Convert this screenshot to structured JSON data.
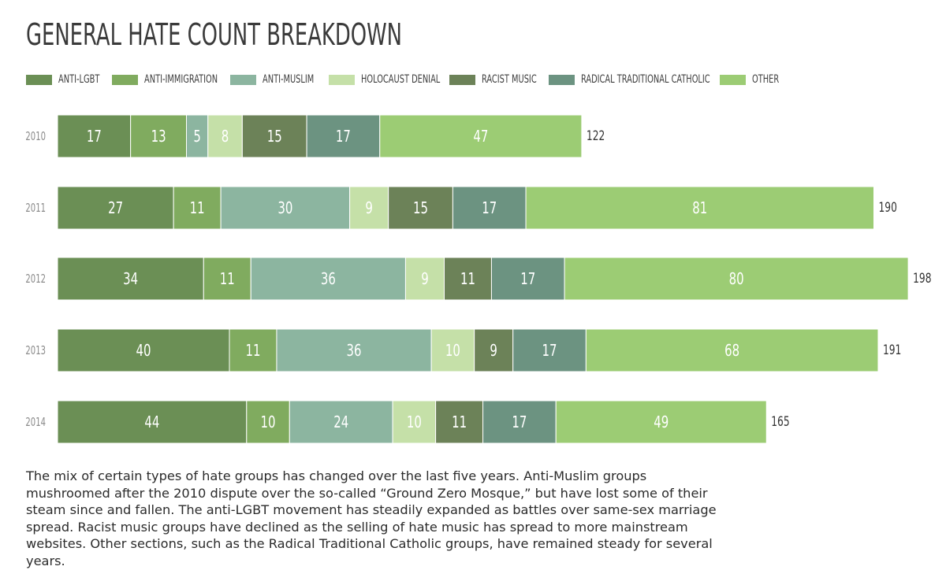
{
  "title": "GENERAL HATE COUNT BREAKDOWN",
  "description": "The mix of certain types of hate groups has changed over the last five years. Anti-Muslim groups mushroomed after the 2010 dispute over the so-called “Ground Zero Mosque,” but have lost some of their steam since and fallen. The anti-LGBT movement has steadily expanded as battles over same-sex marriage spread. Racist music groups have declined as the selling of hate music has spread to more mainstream websites. Other sections, such as the Radical Traditional Catholic groups, have remained steady for several years.",
  "colors": {
    "anti_lgbt": "#6b8f55",
    "anti_immigration": "#80ab5f",
    "anti_muslim": "#8cb5a0",
    "holocaust_denial": "#c5e0a8",
    "racist_music": "#6c8258",
    "radical_traditional_catholic": "#6c9381",
    "other": "#9ccc74"
  },
  "chart_data": {
    "type": "bar",
    "orientation": "horizontal",
    "stacked": true,
    "categories": [
      "2010",
      "2011",
      "2012",
      "2013",
      "2014"
    ],
    "series": [
      {
        "name": "ANTI-LGBT",
        "key": "anti_lgbt",
        "values": [
          17,
          27,
          34,
          40,
          44
        ]
      },
      {
        "name": "ANTI-IMMIGRATION",
        "key": "anti_immigration",
        "values": [
          13,
          11,
          11,
          11,
          10
        ]
      },
      {
        "name": "ANTI-MUSLIM",
        "key": "anti_muslim",
        "values": [
          5,
          30,
          36,
          36,
          24
        ]
      },
      {
        "name": "HOLOCAUST DENIAL",
        "key": "holocaust_denial",
        "values": [
          8,
          9,
          9,
          10,
          10
        ]
      },
      {
        "name": "RACIST MUSIC",
        "key": "racist_music",
        "values": [
          15,
          15,
          11,
          9,
          11
        ]
      },
      {
        "name": "RADICAL TRADITIONAL CATHOLIC",
        "key": "radical_traditional_catholic",
        "values": [
          17,
          17,
          17,
          17,
          17
        ]
      },
      {
        "name": "OTHER",
        "key": "other",
        "values": [
          47,
          81,
          80,
          68,
          49
        ]
      }
    ],
    "totals": [
      122,
      190,
      198,
      191,
      165
    ],
    "legend_position": "top",
    "grid": false
  }
}
